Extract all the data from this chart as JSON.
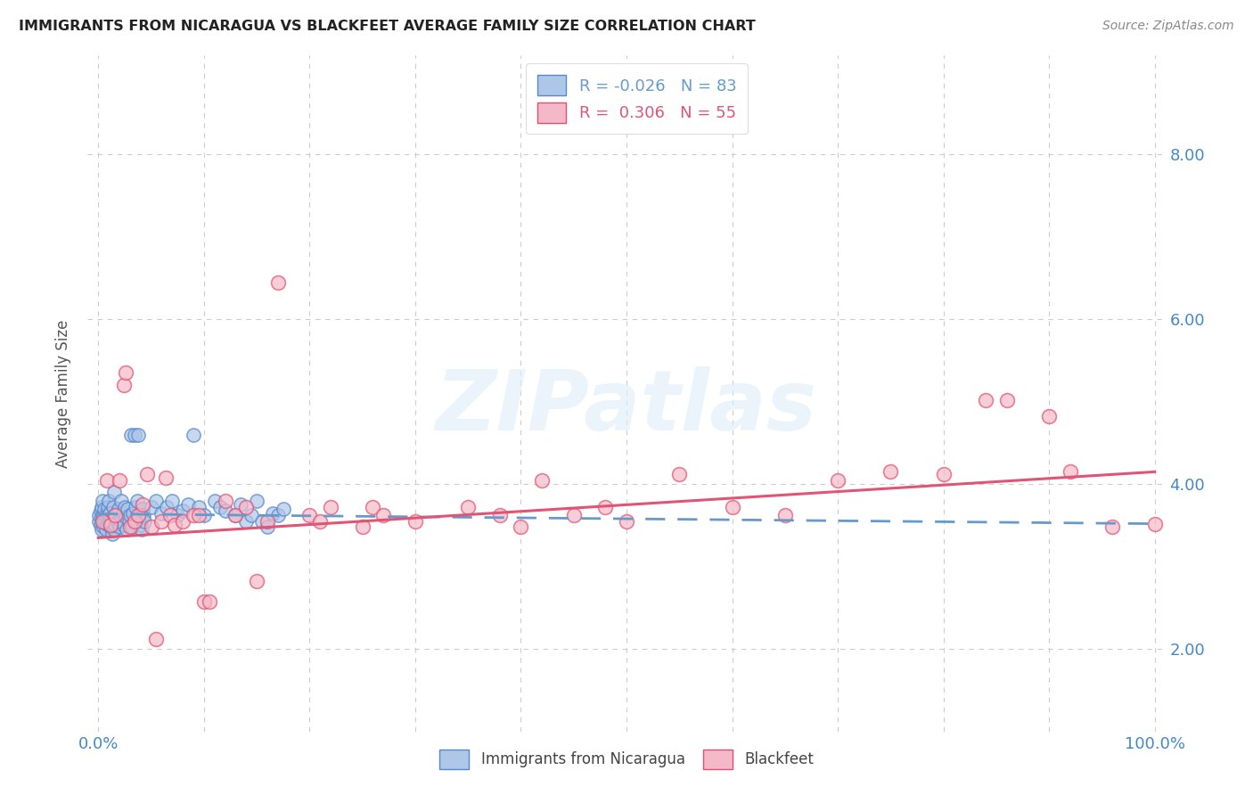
{
  "title": "IMMIGRANTS FROM NICARAGUA VS BLACKFEET AVERAGE FAMILY SIZE CORRELATION CHART",
  "source": "Source: ZipAtlas.com",
  "ylabel": "Average Family Size",
  "legend_label1": "Immigrants from Nicaragua",
  "legend_label2": "Blackfeet",
  "R1": "-0.026",
  "N1": "83",
  "R2": "0.306",
  "N2": "55",
  "blue_face_color": "#aec6e8",
  "blue_edge_color": "#5588cc",
  "pink_face_color": "#f5b8c8",
  "pink_edge_color": "#e05070",
  "blue_trend_color": "#6699cc",
  "pink_trend_color": "#e05575",
  "tick_color": "#4488cc",
  "watermark": "ZIPatlas",
  "yticks": [
    2.0,
    4.0,
    6.0,
    8.0
  ],
  "xlim": [
    -0.01,
    1.01
  ],
  "ylim": [
    1.0,
    9.2
  ],
  "blue_scatter": [
    [
      0.001,
      3.55
    ],
    [
      0.001,
      3.62
    ],
    [
      0.002,
      3.5
    ],
    [
      0.002,
      3.68
    ],
    [
      0.003,
      3.72
    ],
    [
      0.003,
      3.45
    ],
    [
      0.003,
      3.6
    ],
    [
      0.004,
      3.55
    ],
    [
      0.004,
      3.8
    ],
    [
      0.005,
      3.62
    ],
    [
      0.005,
      3.48
    ],
    [
      0.006,
      3.7
    ],
    [
      0.006,
      3.55
    ],
    [
      0.007,
      3.45
    ],
    [
      0.007,
      3.6
    ],
    [
      0.008,
      3.52
    ],
    [
      0.008,
      3.65
    ],
    [
      0.009,
      3.72
    ],
    [
      0.009,
      3.55
    ],
    [
      0.01,
      3.8
    ],
    [
      0.01,
      3.62
    ],
    [
      0.011,
      3.55
    ],
    [
      0.011,
      3.65
    ],
    [
      0.012,
      3.48
    ],
    [
      0.012,
      3.55
    ],
    [
      0.013,
      3.4
    ],
    [
      0.014,
      3.72
    ],
    [
      0.015,
      3.9
    ],
    [
      0.015,
      3.45
    ],
    [
      0.016,
      3.5
    ],
    [
      0.016,
      3.62
    ],
    [
      0.017,
      3.62
    ],
    [
      0.018,
      3.55
    ],
    [
      0.019,
      3.7
    ],
    [
      0.02,
      3.48
    ],
    [
      0.021,
      3.56
    ],
    [
      0.022,
      3.8
    ],
    [
      0.023,
      3.65
    ],
    [
      0.024,
      3.5
    ],
    [
      0.025,
      3.72
    ],
    [
      0.026,
      3.6
    ],
    [
      0.027,
      3.45
    ],
    [
      0.028,
      3.7
    ],
    [
      0.029,
      3.55
    ],
    [
      0.03,
      3.62
    ],
    [
      0.032,
      3.48
    ],
    [
      0.033,
      3.65
    ],
    [
      0.035,
      3.72
    ],
    [
      0.036,
      3.55
    ],
    [
      0.037,
      3.8
    ],
    [
      0.039,
      3.62
    ],
    [
      0.04,
      3.5
    ],
    [
      0.041,
      3.45
    ],
    [
      0.042,
      3.7
    ],
    [
      0.043,
      3.62
    ],
    [
      0.044,
      3.55
    ],
    [
      0.05,
      3.72
    ],
    [
      0.055,
      3.8
    ],
    [
      0.06,
      3.65
    ],
    [
      0.065,
      3.72
    ],
    [
      0.07,
      3.8
    ],
    [
      0.075,
      3.62
    ],
    [
      0.031,
      4.6
    ],
    [
      0.034,
      4.6
    ],
    [
      0.038,
      4.6
    ],
    [
      0.09,
      4.6
    ],
    [
      0.08,
      3.68
    ],
    [
      0.085,
      3.75
    ],
    [
      0.095,
      3.72
    ],
    [
      0.1,
      3.62
    ],
    [
      0.11,
      3.8
    ],
    [
      0.115,
      3.72
    ],
    [
      0.12,
      3.68
    ],
    [
      0.13,
      3.62
    ],
    [
      0.135,
      3.75
    ],
    [
      0.14,
      3.55
    ],
    [
      0.145,
      3.62
    ],
    [
      0.15,
      3.8
    ],
    [
      0.155,
      3.55
    ],
    [
      0.16,
      3.48
    ],
    [
      0.165,
      3.65
    ],
    [
      0.17,
      3.62
    ],
    [
      0.175,
      3.7
    ]
  ],
  "pink_scatter": [
    [
      0.004,
      3.55
    ],
    [
      0.008,
      4.05
    ],
    [
      0.012,
      3.5
    ],
    [
      0.016,
      3.62
    ],
    [
      0.02,
      4.05
    ],
    [
      0.024,
      5.2
    ],
    [
      0.026,
      5.35
    ],
    [
      0.03,
      3.48
    ],
    [
      0.034,
      3.55
    ],
    [
      0.038,
      3.62
    ],
    [
      0.042,
      3.75
    ],
    [
      0.046,
      4.12
    ],
    [
      0.05,
      3.48
    ],
    [
      0.055,
      2.12
    ],
    [
      0.06,
      3.55
    ],
    [
      0.064,
      4.08
    ],
    [
      0.068,
      3.62
    ],
    [
      0.072,
      3.5
    ],
    [
      0.08,
      3.55
    ],
    [
      0.09,
      3.62
    ],
    [
      0.095,
      3.62
    ],
    [
      0.1,
      2.58
    ],
    [
      0.105,
      2.58
    ],
    [
      0.12,
      3.8
    ],
    [
      0.13,
      3.62
    ],
    [
      0.14,
      3.72
    ],
    [
      0.15,
      2.82
    ],
    [
      0.16,
      3.55
    ],
    [
      0.17,
      6.45
    ],
    [
      0.2,
      3.62
    ],
    [
      0.21,
      3.55
    ],
    [
      0.22,
      3.72
    ],
    [
      0.25,
      3.48
    ],
    [
      0.26,
      3.72
    ],
    [
      0.27,
      3.62
    ],
    [
      0.3,
      3.55
    ],
    [
      0.35,
      3.72
    ],
    [
      0.38,
      3.62
    ],
    [
      0.4,
      3.48
    ],
    [
      0.42,
      4.05
    ],
    [
      0.45,
      3.62
    ],
    [
      0.48,
      3.72
    ],
    [
      0.5,
      3.55
    ],
    [
      0.55,
      4.12
    ],
    [
      0.6,
      3.72
    ],
    [
      0.65,
      3.62
    ],
    [
      0.7,
      4.05
    ],
    [
      0.75,
      4.15
    ],
    [
      0.8,
      4.12
    ],
    [
      0.84,
      5.02
    ],
    [
      0.86,
      5.02
    ],
    [
      0.9,
      4.82
    ],
    [
      0.92,
      4.15
    ],
    [
      0.96,
      3.48
    ],
    [
      1.0,
      3.52
    ]
  ],
  "blue_trend_x": [
    0.0,
    1.0
  ],
  "blue_trend_y": [
    3.64,
    3.52
  ],
  "pink_trend_x": [
    0.0,
    1.0
  ],
  "pink_trend_y": [
    3.35,
    4.15
  ]
}
